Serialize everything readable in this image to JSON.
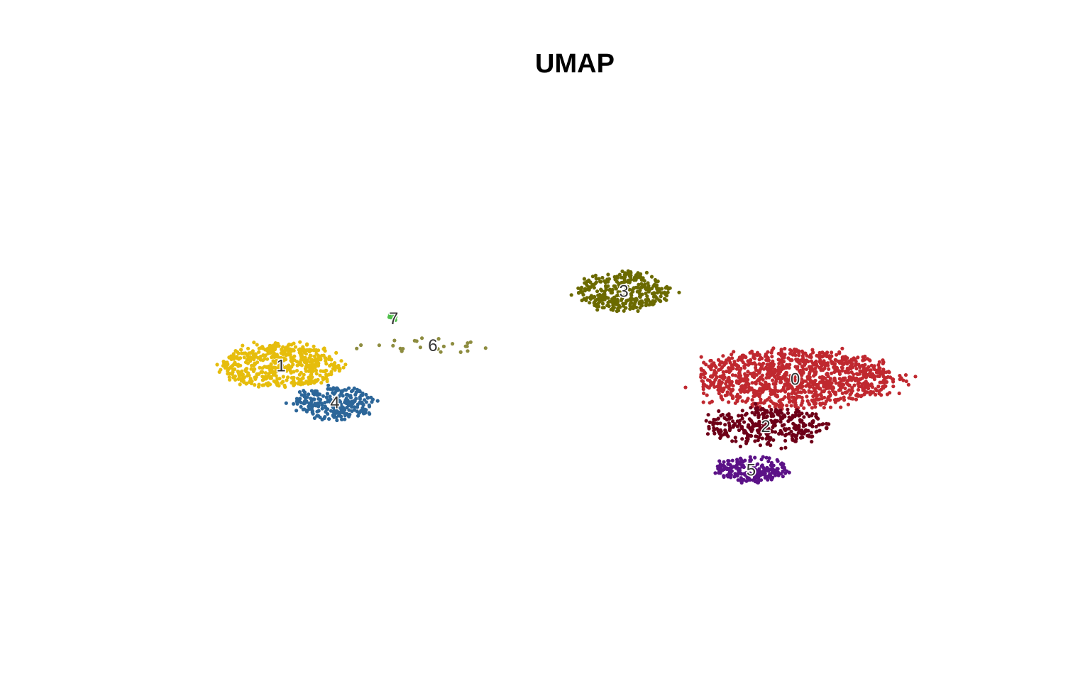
{
  "chart_data": {
    "type": "scatter",
    "title": "UMAP",
    "xlabel": "",
    "ylabel": "",
    "xlim": [
      -10,
      10
    ],
    "ylim": [
      -8,
      8
    ],
    "axes_visible": false,
    "grid": false,
    "legend": "none",
    "clusters": [
      {
        "label": "0",
        "color": "#c0282f",
        "center": [
          4.5,
          -0.3
        ],
        "spread": [
          2.2,
          0.9
        ],
        "n": 1100
      },
      {
        "label": "1",
        "color": "#e6bd0c",
        "center": [
          -6.0,
          0.1
        ],
        "spread": [
          1.3,
          0.7
        ],
        "n": 520
      },
      {
        "label": "2",
        "color": "#6e0018",
        "center": [
          3.9,
          -1.7
        ],
        "spread": [
          1.3,
          0.6
        ],
        "n": 330
      },
      {
        "label": "3",
        "color": "#6b6a00",
        "center": [
          1.0,
          2.3
        ],
        "spread": [
          1.0,
          0.6
        ],
        "n": 340
      },
      {
        "label": "4",
        "color": "#2c6699",
        "center": [
          -4.9,
          -1.0
        ],
        "spread": [
          0.9,
          0.5
        ],
        "n": 240
      },
      {
        "label": "5",
        "color": "#5b1287",
        "center": [
          3.6,
          -3.0
        ],
        "spread": [
          0.8,
          0.4
        ],
        "n": 200
      },
      {
        "label": "6",
        "color": "#8d8c3f",
        "center": [
          -2.9,
          0.7
        ],
        "spread": [
          1.6,
          0.25
        ],
        "n": 24
      },
      {
        "label": "7",
        "color": "#4fbf4a",
        "center": [
          -3.7,
          1.5
        ],
        "spread": [
          0.1,
          0.15
        ],
        "n": 6
      }
    ]
  }
}
